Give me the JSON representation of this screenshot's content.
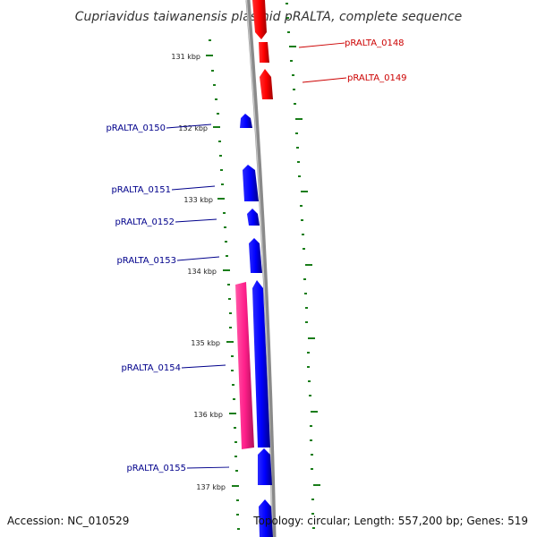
{
  "title": "Cupriavidus taiwanensis plasmid pRALTA, complete sequence",
  "colors": {
    "backbone": "#8a8a8a",
    "reverse_gene": "#ff0000",
    "forward_gene": "#0000ff",
    "rna_feature": "#ff3399",
    "tick": "#1a7d1a",
    "reverse_label": "#cc0000",
    "forward_label": "#00008b"
  },
  "ticks": [
    {
      "label": "131 kbp"
    },
    {
      "label": "132 kbp"
    },
    {
      "label": "133 kbp"
    },
    {
      "label": "134 kbp"
    },
    {
      "label": "135 kbp"
    },
    {
      "label": "136 kbp"
    },
    {
      "label": "137 kbp"
    }
  ],
  "genes": [
    {
      "label": "pRALTA_0148",
      "strand": "reverse"
    },
    {
      "label": "pRALTA_0149",
      "strand": "reverse"
    },
    {
      "label": "pRALTA_0150",
      "strand": "forward"
    },
    {
      "label": "pRALTA_0151",
      "strand": "forward"
    },
    {
      "label": "pRALTA_0152",
      "strand": "forward"
    },
    {
      "label": "pRALTA_0153",
      "strand": "forward"
    },
    {
      "label": "pRALTA_0154",
      "strand": "forward"
    },
    {
      "label": "pRALTA_0155",
      "strand": "forward"
    }
  ],
  "footer": {
    "accession": "Accession: NC_010529",
    "summary": "Topology: circular; Length: 557,200 bp; Genes: 519"
  }
}
